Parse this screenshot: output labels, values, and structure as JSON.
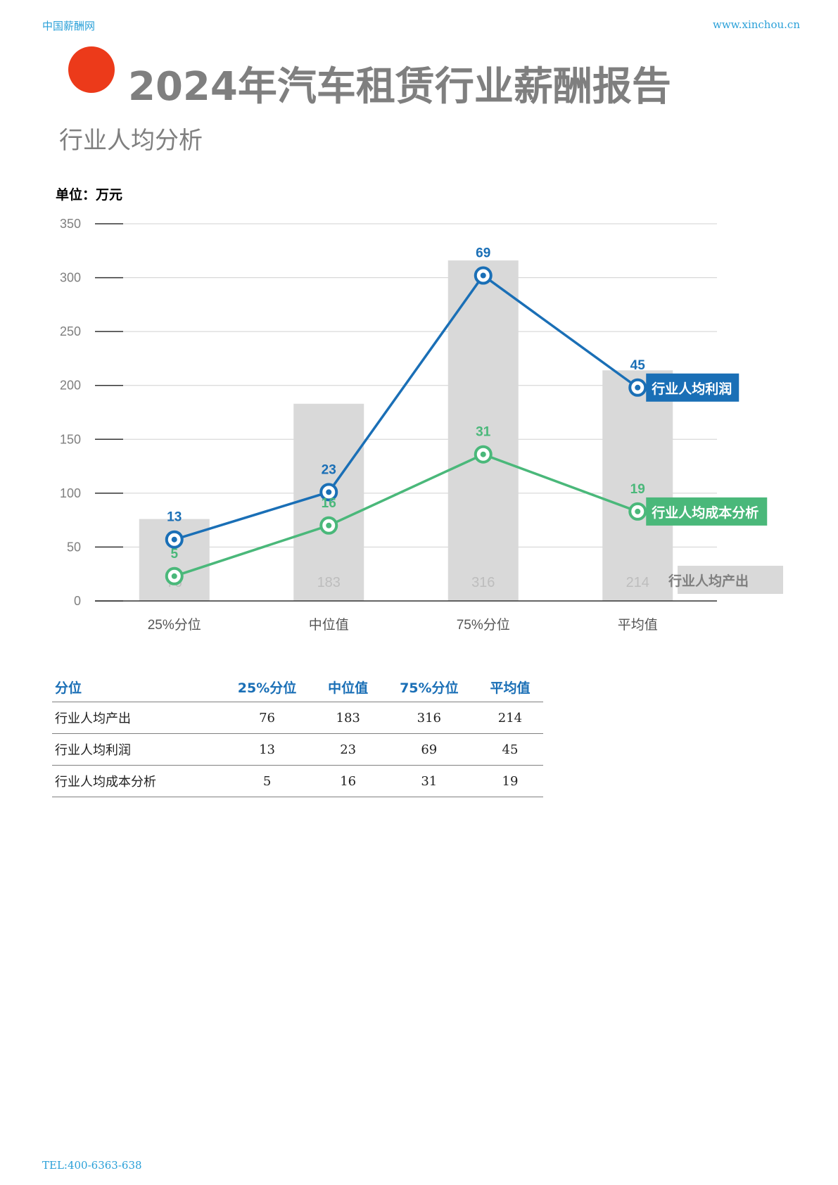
{
  "header": {
    "left": "中国薪酬网",
    "right": "www.xinchou.cn"
  },
  "title": "2024年汽车租赁行业薪酬报告",
  "subtitle": "行业人均分析",
  "unit": "单位：万元",
  "colors": {
    "bar": "#d9d9d9",
    "profit": "#1a6fb6",
    "cost": "#4ab87a",
    "accent_dot": "#ec3a1a",
    "table_header": "#1a6fb6"
  },
  "chart_data": {
    "type": "bar",
    "categories": [
      "25%分位",
      "中位值",
      "75%分位",
      "平均值"
    ],
    "ylim": [
      0,
      350
    ],
    "yticks": [
      0,
      50,
      100,
      150,
      200,
      250,
      300,
      350
    ],
    "series": [
      {
        "name": "行业人均产出",
        "kind": "bar",
        "values": [
          76,
          183,
          316,
          214
        ]
      },
      {
        "name": "行业人均利润",
        "kind": "line",
        "values": [
          13,
          23,
          69,
          45
        ]
      },
      {
        "name": "行业人均成本分析",
        "kind": "line",
        "values": [
          5,
          16,
          31,
          19
        ]
      }
    ],
    "line_positions_note": "",
    "grid": true,
    "legend": "right, inline at end of series"
  },
  "line_plot_y": {
    "profit": [
      57,
      101,
      302,
      198
    ],
    "cost": [
      23,
      70,
      136,
      83
    ]
  },
  "table": {
    "headers": [
      "分位",
      "25%分位",
      "中位值",
      "75%分位",
      "平均值"
    ],
    "rows": [
      {
        "label": "行业人均产出",
        "values": [
          "76",
          "183",
          "316",
          "214"
        ]
      },
      {
        "label": "行业人均利润",
        "values": [
          "13",
          "23",
          "69",
          "45"
        ]
      },
      {
        "label": "行业人均成本分析",
        "values": [
          "5",
          "16",
          "31",
          "19"
        ]
      }
    ]
  },
  "footer": "TEL:400-6363-638"
}
